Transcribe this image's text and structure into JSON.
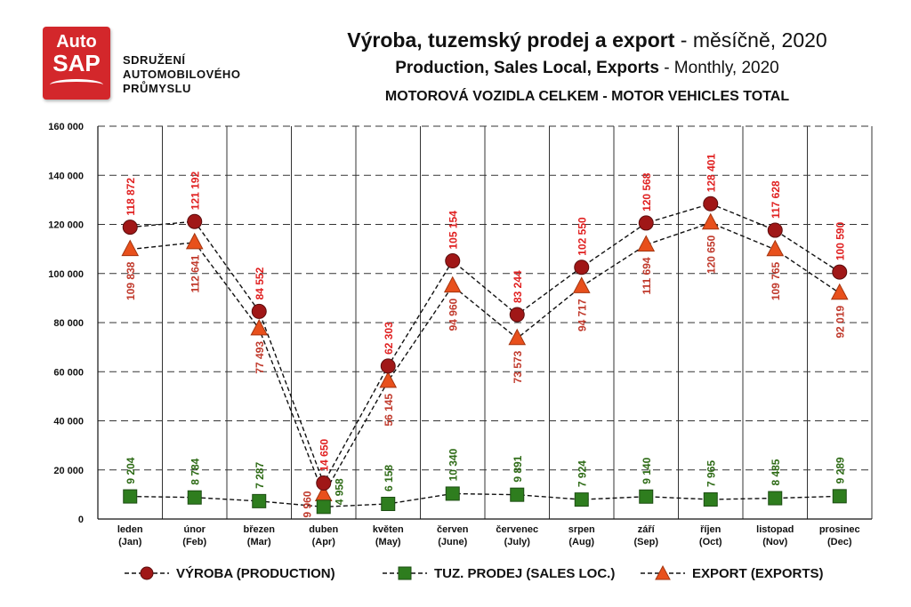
{
  "header": {
    "logo_top": "Auto",
    "logo_bottom": "SAP",
    "org_lines": [
      "SDRUŽENÍ",
      "AUTOMOBILOVÉHO",
      "PRŮMYSLU"
    ],
    "title1_bold": "Výroba, tuzemský prodej a export",
    "title1_rest": " - měsíčně, 2020",
    "title2_bold": "Production, Sales Local, Exports",
    "title2_rest": " - Monthly, 2020",
    "title3": "MOTOROVÁ VOZIDLA CELKEM - MOTOR VEHICLES TOTAL"
  },
  "legend": {
    "production": "VÝROBA (PRODUCTION)",
    "sales": "TUZ. PRODEJ (SALES LOC.)",
    "exports": "EXPORT (EXPORTS)"
  },
  "colors": {
    "production": "#a01717",
    "sales": "#2e7d1e",
    "exports": "#e8501c",
    "production_label": "#e02020",
    "sales_label": "#2e6b16",
    "exports_label": "#c0392b"
  },
  "chart_data": {
    "type": "line",
    "title": "Výroba, tuzemský prodej a export - měsíčně, 2020",
    "ylim": [
      0,
      160000
    ],
    "yticks": [
      0,
      20000,
      40000,
      60000,
      80000,
      100000,
      120000,
      140000,
      160000
    ],
    "ytick_labels": [
      "0",
      "20 000",
      "40 000",
      "60 000",
      "80 000",
      "100 000",
      "120 000",
      "140 000",
      "160 000"
    ],
    "categories": [
      [
        "leden",
        "(Jan)"
      ],
      [
        "únor",
        "(Feb)"
      ],
      [
        "březen",
        "(Mar)"
      ],
      [
        "duben",
        "(Apr)"
      ],
      [
        "květen",
        "(May)"
      ],
      [
        "červen",
        "(June)"
      ],
      [
        "červenec",
        "(July)"
      ],
      [
        "srpen",
        "(Aug)"
      ],
      [
        "září",
        "(Sep)"
      ],
      [
        "říjen",
        "(Oct)"
      ],
      [
        "listopad",
        "(Nov)"
      ],
      [
        "prosinec",
        "(Dec)"
      ]
    ],
    "series": [
      {
        "name": "VÝROBA (PRODUCTION)",
        "marker": "circle",
        "values": [
          118872,
          121192,
          84552,
          14650,
          62303,
          105154,
          83244,
          102550,
          120568,
          128401,
          117628,
          100590
        ],
        "labels": [
          "118 872",
          "121 192",
          "84 552",
          "14 650",
          "62 303",
          "105 154",
          "83 244",
          "102 550",
          "120 568",
          "128 401",
          "117 628",
          "100 590"
        ]
      },
      {
        "name": "TUZ. PRODEJ (SALES LOC.)",
        "marker": "square",
        "values": [
          9204,
          8784,
          7287,
          4958,
          6158,
          10340,
          9891,
          7924,
          9140,
          7965,
          8485,
          9289
        ],
        "labels": [
          "9 204",
          "8 784",
          "7 287",
          "4 958",
          "6 158",
          "10 340",
          "9 891",
          "7 924",
          "9 140",
          "7 965",
          "8 485",
          "9 289"
        ]
      },
      {
        "name": "EXPORT (EXPORTS)",
        "marker": "triangle",
        "values": [
          109838,
          112641,
          77493,
          9960,
          56145,
          94960,
          73573,
          94717,
          111694,
          120650,
          109765,
          92019
        ],
        "labels": [
          "109 838",
          "112 641",
          "77 493",
          "9 960",
          "56 145",
          "94 960",
          "73 573",
          "94 717",
          "111 694",
          "120 650",
          "109 765",
          "92 019"
        ]
      }
    ]
  }
}
